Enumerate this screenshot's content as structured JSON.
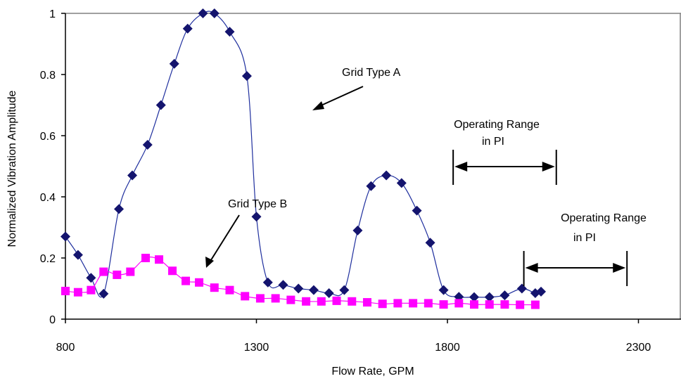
{
  "chart_data": {
    "type": "line",
    "title": "",
    "xlabel": "Flow Rate, GPM",
    "ylabel": "Normalized Vibration Amplitude",
    "xlim": [
      800,
      2550
    ],
    "ylim": [
      0,
      1
    ],
    "x_ticks": [
      "800",
      "1300",
      "1800",
      "2300"
    ],
    "y_ticks": [
      "0",
      "0.2",
      "0.4",
      "0.6",
      "0.8",
      "1"
    ],
    "grid": false,
    "series": [
      {
        "name": "Grid Type A",
        "marker": "diamond",
        "line_color": "#1f2f9e",
        "marker_color": "#14146e",
        "points": [
          [
            800,
            0.27
          ],
          [
            833,
            0.21
          ],
          [
            867,
            0.135
          ],
          [
            900,
            0.083
          ],
          [
            940,
            0.36
          ],
          [
            975,
            0.47
          ],
          [
            1015,
            0.57
          ],
          [
            1050,
            0.7
          ],
          [
            1085,
            0.835
          ],
          [
            1120,
            0.95
          ],
          [
            1160,
            1.0
          ],
          [
            1190,
            1.0
          ],
          [
            1230,
            0.94
          ],
          [
            1275,
            0.795
          ],
          [
            1300,
            0.335
          ],
          [
            1330,
            0.12
          ],
          [
            1370,
            0.112
          ],
          [
            1410,
            0.1
          ],
          [
            1450,
            0.095
          ],
          [
            1490,
            0.085
          ],
          [
            1530,
            0.095
          ],
          [
            1565,
            0.29
          ],
          [
            1600,
            0.435
          ],
          [
            1640,
            0.47
          ],
          [
            1680,
            0.445
          ],
          [
            1720,
            0.355
          ],
          [
            1755,
            0.25
          ],
          [
            1790,
            0.095
          ],
          [
            1830,
            0.073
          ],
          [
            1870,
            0.072
          ],
          [
            1910,
            0.072
          ],
          [
            1950,
            0.078
          ],
          [
            1995,
            0.1
          ],
          [
            2030,
            0.085
          ],
          [
            2045,
            0.09
          ]
        ]
      },
      {
        "name": "Grid Type B",
        "marker": "square",
        "line_color": "#ff00ff",
        "marker_color": "#ff00ff",
        "points": [
          [
            800,
            0.092
          ],
          [
            833,
            0.088
          ],
          [
            867,
            0.095
          ],
          [
            900,
            0.155
          ],
          [
            935,
            0.145
          ],
          [
            970,
            0.155
          ],
          [
            1010,
            0.2
          ],
          [
            1045,
            0.195
          ],
          [
            1080,
            0.158
          ],
          [
            1115,
            0.125
          ],
          [
            1150,
            0.12
          ],
          [
            1190,
            0.103
          ],
          [
            1230,
            0.095
          ],
          [
            1270,
            0.075
          ],
          [
            1310,
            0.068
          ],
          [
            1350,
            0.068
          ],
          [
            1390,
            0.063
          ],
          [
            1430,
            0.058
          ],
          [
            1470,
            0.058
          ],
          [
            1510,
            0.06
          ],
          [
            1550,
            0.058
          ],
          [
            1590,
            0.055
          ],
          [
            1630,
            0.05
          ],
          [
            1670,
            0.052
          ],
          [
            1710,
            0.052
          ],
          [
            1750,
            0.052
          ],
          [
            1790,
            0.048
          ],
          [
            1830,
            0.052
          ],
          [
            1870,
            0.048
          ],
          [
            1910,
            0.048
          ],
          [
            1950,
            0.048
          ],
          [
            1990,
            0.047
          ],
          [
            2030,
            0.047
          ]
        ]
      }
    ],
    "annotations": {
      "label_a": "Grid Type A",
      "label_b": "Grid Type B",
      "range1_line1": "Operating Range",
      "range1_line2": "in PI",
      "range2_line1": "Operating Range",
      "range2_line2": "in PI",
      "range1": [
        1815,
        2085
      ],
      "range2": [
        2000,
        2270
      ]
    }
  }
}
